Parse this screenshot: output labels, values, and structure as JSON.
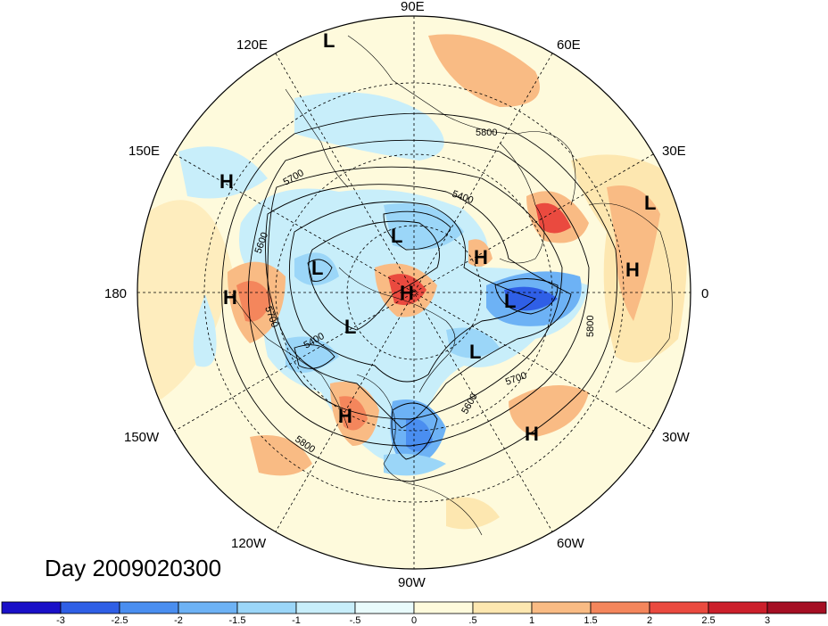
{
  "title": "Day 2009020300",
  "longitude_labels": {
    "lon_90E": "90E",
    "lon_60E": "60E",
    "lon_30E": "30E",
    "lon_0": "0",
    "lon_30W": "30W",
    "lon_60W": "60W",
    "lon_90W": "90W",
    "lon_120W": "120W",
    "lon_150W": "150W",
    "lon_180": "180",
    "lon_150E": "150E",
    "lon_120E": "120E"
  },
  "pressure_centers": [
    {
      "id": "L1",
      "type": "L"
    },
    {
      "id": "L2",
      "type": "L"
    },
    {
      "id": "L3",
      "type": "L"
    },
    {
      "id": "L4",
      "type": "L"
    },
    {
      "id": "L5",
      "type": "L"
    },
    {
      "id": "L6",
      "type": "L"
    },
    {
      "id": "L7",
      "type": "L"
    },
    {
      "id": "H1",
      "type": "H"
    },
    {
      "id": "H2",
      "type": "H"
    },
    {
      "id": "H3",
      "type": "H"
    },
    {
      "id": "H4",
      "type": "H"
    },
    {
      "id": "H5",
      "type": "H"
    },
    {
      "id": "H6",
      "type": "H"
    },
    {
      "id": "H7",
      "type": "H"
    }
  ],
  "contour_labels": {
    "c5800_a": "5800",
    "c5700_a": "5700",
    "c5600_a": "5600",
    "c5700_b": "5700",
    "c5400_a": "5400",
    "c5400_b": "5400",
    "c5800_b": "5800",
    "c5600_b": "5600",
    "c5700_c": "5700",
    "c5800_c": "5800"
  },
  "colorbar": {
    "ticks": [
      "-3",
      "-2.5",
      "-2",
      "-1.5",
      "-1",
      "-.5",
      "0",
      ".5",
      "1",
      "1.5",
      "2",
      "2.5",
      "3"
    ],
    "colors": [
      "#1a10c8",
      "#2f5fe6",
      "#4a8ef0",
      "#6db2f5",
      "#9bd6f8",
      "#c8eefa",
      "#e9fbfc",
      "#fefadc",
      "#fde7b0",
      "#f9bb84",
      "#f4865c",
      "#ea4a3f",
      "#cc1f2b",
      "#a50f23"
    ]
  }
}
